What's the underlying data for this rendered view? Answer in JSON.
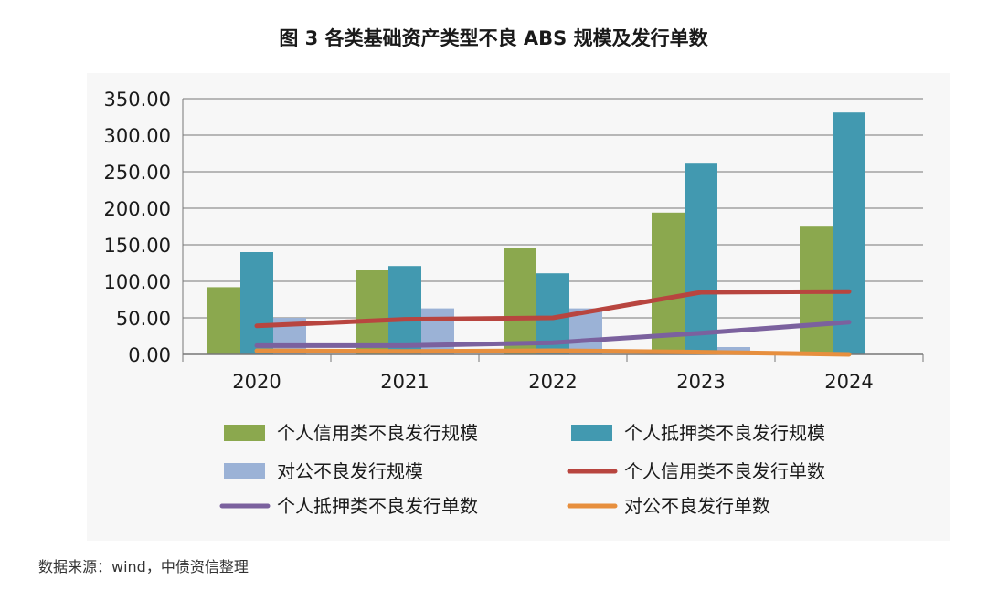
{
  "title": "图 3  各类基础资产类型不良 ABS 规模及发行单数",
  "source": "数据来源：wind，中债资信整理",
  "chart_data": {
    "type": "bar",
    "categories": [
      "2020",
      "2021",
      "2022",
      "2023",
      "2024"
    ],
    "ylim": [
      0,
      350
    ],
    "y_ticks": [
      "0.00",
      "50.00",
      "100.00",
      "150.00",
      "200.00",
      "250.00",
      "300.00",
      "350.00"
    ],
    "grid": true,
    "legend_position": "bottom",
    "bar_series": [
      {
        "name": "个人信用类不良发行规模",
        "color": "#8ba84e",
        "values": [
          92,
          115,
          145,
          194,
          176
        ]
      },
      {
        "name": "个人抵押类不良发行规模",
        "color": "#4299b0",
        "values": [
          140,
          121,
          111,
          261,
          331
        ]
      },
      {
        "name": "对公不良发行规模",
        "color": "#9bb2d6",
        "values": [
          50,
          63,
          63,
          10,
          0
        ]
      }
    ],
    "line_series": [
      {
        "name": "个人信用类不良发行单数",
        "color": "#b8453f",
        "values": [
          39,
          48,
          50,
          85,
          86
        ]
      },
      {
        "name": "个人抵押类不良发行单数",
        "color": "#7b619e",
        "values": [
          12,
          12,
          16,
          29,
          44
        ]
      },
      {
        "name": "对公不良发行单数",
        "color": "#e78f3e",
        "values": [
          5,
          4,
          5,
          3,
          0
        ]
      }
    ]
  }
}
